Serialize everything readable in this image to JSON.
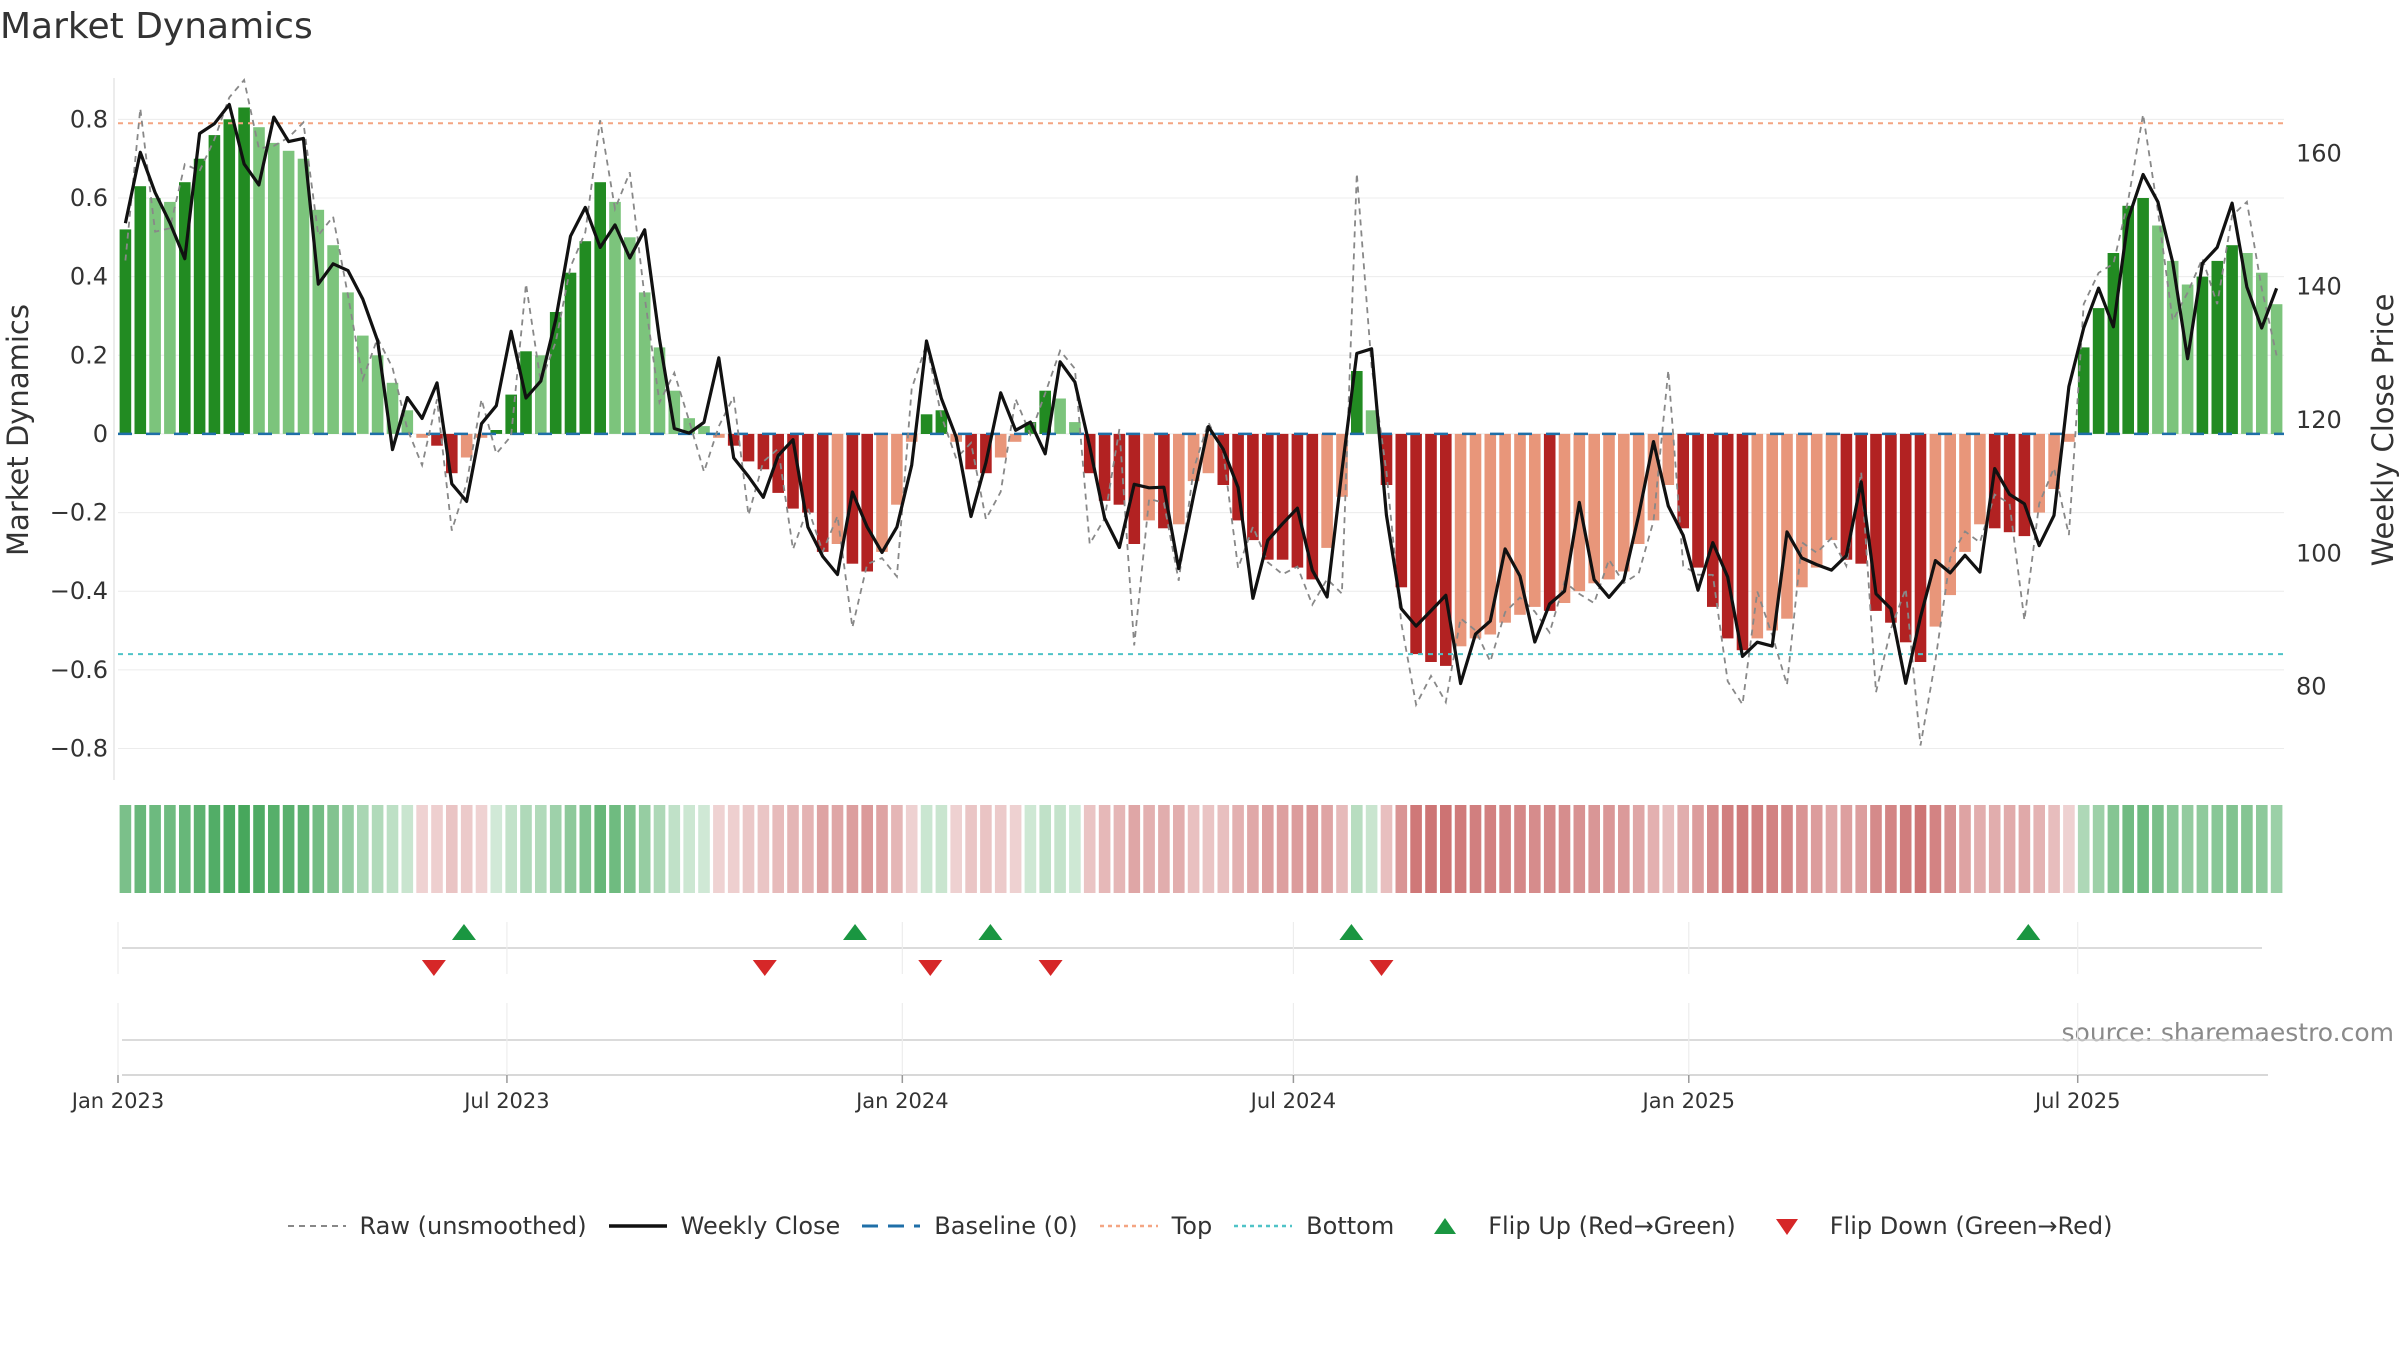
{
  "chart_data": {
    "type": "bar",
    "title": "Market Dynamics",
    "ylabel_left": "Market Dynamics",
    "ylabel_right": "Weekly Close Price",
    "source": "source: sharemaestro.com",
    "ylim_left": [
      -0.88,
      0.9
    ],
    "ylim_right": [
      66,
      171
    ],
    "yticks_left": [
      "0.8",
      "0.6",
      "0.4",
      "0.2",
      "0",
      "−0.2",
      "−0.4",
      "−0.6",
      "−0.8"
    ],
    "yticks_right": [
      "160",
      "140",
      "120",
      "100",
      "80"
    ],
    "xticks": [
      "Jan 2023",
      "Jul 2023",
      "Jan 2024",
      "Jul 2024",
      "Jan 2025",
      "Jul 2025"
    ],
    "x_start": "2023-01-01",
    "x_end": "2025-10-05",
    "levels": {
      "top": 0.79,
      "bottom": -0.56,
      "baseline": 0
    },
    "colors": {
      "strong_green": "#228b22",
      "weak_green": "#7cc47c",
      "strong_red": "#b22222",
      "weak_red": "#e8967a",
      "close": "#111111",
      "raw": "#888888",
      "top": "#f4a582",
      "bottom": "#4fc3c7",
      "baseline": "#1f6fa8",
      "flip_up": "#1a9641",
      "flip_down": "#d62728"
    },
    "dynamics": [
      0.52,
      0.63,
      0.6,
      0.59,
      0.64,
      0.7,
      0.76,
      0.8,
      0.83,
      0.78,
      0.74,
      0.72,
      0.7,
      0.57,
      0.48,
      0.36,
      0.25,
      0.2,
      0.13,
      0.06,
      -0.01,
      -0.03,
      -0.1,
      -0.06,
      -0.01,
      0.01,
      0.1,
      0.21,
      0.2,
      0.31,
      0.41,
      0.49,
      0.64,
      0.59,
      0.5,
      0.36,
      0.22,
      0.11,
      0.04,
      0.02,
      -0.01,
      -0.03,
      -0.07,
      -0.09,
      -0.15,
      -0.19,
      -0.2,
      -0.3,
      -0.28,
      -0.33,
      -0.35,
      -0.3,
      -0.18,
      -0.02,
      0.05,
      0.06,
      -0.02,
      -0.09,
      -0.1,
      -0.06,
      -0.02,
      0.03,
      0.11,
      0.09,
      0.03,
      -0.1,
      -0.17,
      -0.18,
      -0.28,
      -0.22,
      -0.24,
      -0.23,
      -0.12,
      -0.1,
      -0.13,
      -0.22,
      -0.27,
      -0.32,
      -0.32,
      -0.34,
      -0.37,
      -0.29,
      -0.16,
      0.16,
      0.06,
      -0.13,
      -0.39,
      -0.56,
      -0.58,
      -0.59,
      -0.54,
      -0.52,
      -0.51,
      -0.48,
      -0.46,
      -0.44,
      -0.45,
      -0.43,
      -0.4,
      -0.38,
      -0.37,
      -0.35,
      -0.28,
      -0.22,
      -0.13,
      -0.24,
      -0.34,
      -0.44,
      -0.52,
      -0.55,
      -0.52,
      -0.5,
      -0.47,
      -0.39,
      -0.34,
      -0.27,
      -0.32,
      -0.33,
      -0.45,
      -0.48,
      -0.53,
      -0.58,
      -0.49,
      -0.41,
      -0.3,
      -0.23,
      -0.24,
      -0.25,
      -0.26,
      -0.2,
      -0.14,
      -0.02,
      0.22,
      0.32,
      0.46,
      0.58,
      0.6,
      0.53,
      0.44,
      0.38,
      0.4,
      0.44,
      0.48,
      0.46,
      0.41,
      0.33
    ],
    "flips_up": [
      "2023-06-11",
      "2023-12-10",
      "2024-02-11",
      "2024-07-28",
      "2025-06-08"
    ],
    "flips_down": [
      "2023-05-28",
      "2023-10-29",
      "2024-01-14",
      "2024-03-10",
      "2024-08-11"
    ],
    "series": [
      {
        "name": "Raw (unsmoothed)",
        "key": "raw"
      },
      {
        "name": "Weekly Close",
        "key": "close"
      },
      {
        "name": "Baseline (0)",
        "key": "baseline"
      },
      {
        "name": "Top",
        "key": "top"
      },
      {
        "name": "Bottom",
        "key": "bottom"
      },
      {
        "name": "Flip Up (Red→Green)",
        "key": "flip_up"
      },
      {
        "name": "Flip Down (Green→Red)",
        "key": "flip_down"
      }
    ]
  }
}
